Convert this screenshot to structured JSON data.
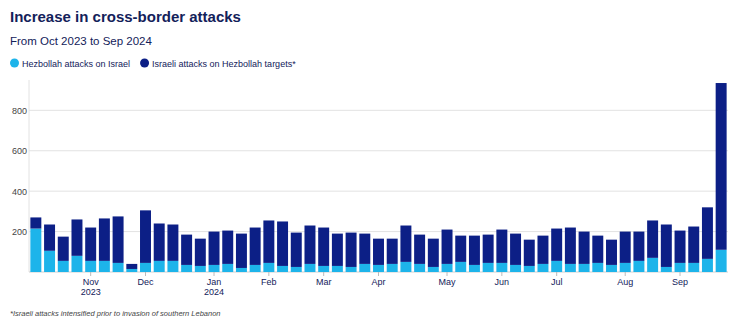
{
  "chart_data": {
    "type": "bar",
    "title": "Increase in cross-border attacks",
    "subtitle": "From Oct 2023 to Sep 2024",
    "annotations": [
      "*Israeli attacks intensified prior to invasion of southern Lebanon"
    ],
    "categories": [
      null,
      null,
      null,
      null,
      "Nov 2023",
      null,
      null,
      null,
      "Dec",
      null,
      null,
      null,
      null,
      "Jan 2024",
      null,
      null,
      null,
      "Feb",
      null,
      null,
      null,
      "Mar",
      null,
      null,
      null,
      "Apr",
      null,
      null,
      null,
      null,
      "May",
      null,
      null,
      null,
      "Jun",
      null,
      null,
      null,
      "Jul",
      null,
      null,
      null,
      null,
      "Aug",
      null,
      null,
      null,
      "Sep",
      null,
      null,
      null
    ],
    "series": [
      {
        "name": "Hezbollah attacks on Israel",
        "color": "#1db4ea",
        "values": [
          215,
          105,
          55,
          80,
          55,
          55,
          45,
          15,
          45,
          55,
          55,
          35,
          30,
          35,
          40,
          20,
          35,
          45,
          30,
          25,
          40,
          30,
          30,
          25,
          40,
          35,
          40,
          50,
          40,
          25,
          40,
          50,
          35,
          45,
          45,
          35,
          30,
          40,
          55,
          40,
          40,
          45,
          35,
          45,
          55,
          70,
          25,
          45,
          45,
          65,
          110
        ]
      },
      {
        "name": "Israeli attacks on Hezbollah targets*",
        "color": "#0c1f86",
        "values": [
          55,
          130,
          120,
          180,
          165,
          210,
          230,
          25,
          260,
          185,
          180,
          150,
          135,
          165,
          165,
          170,
          185,
          210,
          220,
          170,
          190,
          190,
          160,
          170,
          150,
          130,
          125,
          180,
          145,
          140,
          170,
          130,
          145,
          140,
          165,
          155,
          130,
          140,
          160,
          180,
          160,
          135,
          125,
          155,
          145,
          185,
          210,
          160,
          180,
          255,
          825
        ]
      }
    ],
    "stacked": true,
    "ylim": [
      0,
      950
    ],
    "yticks": [
      200,
      400,
      600,
      800
    ],
    "grid": true,
    "legend": "top-left"
  }
}
